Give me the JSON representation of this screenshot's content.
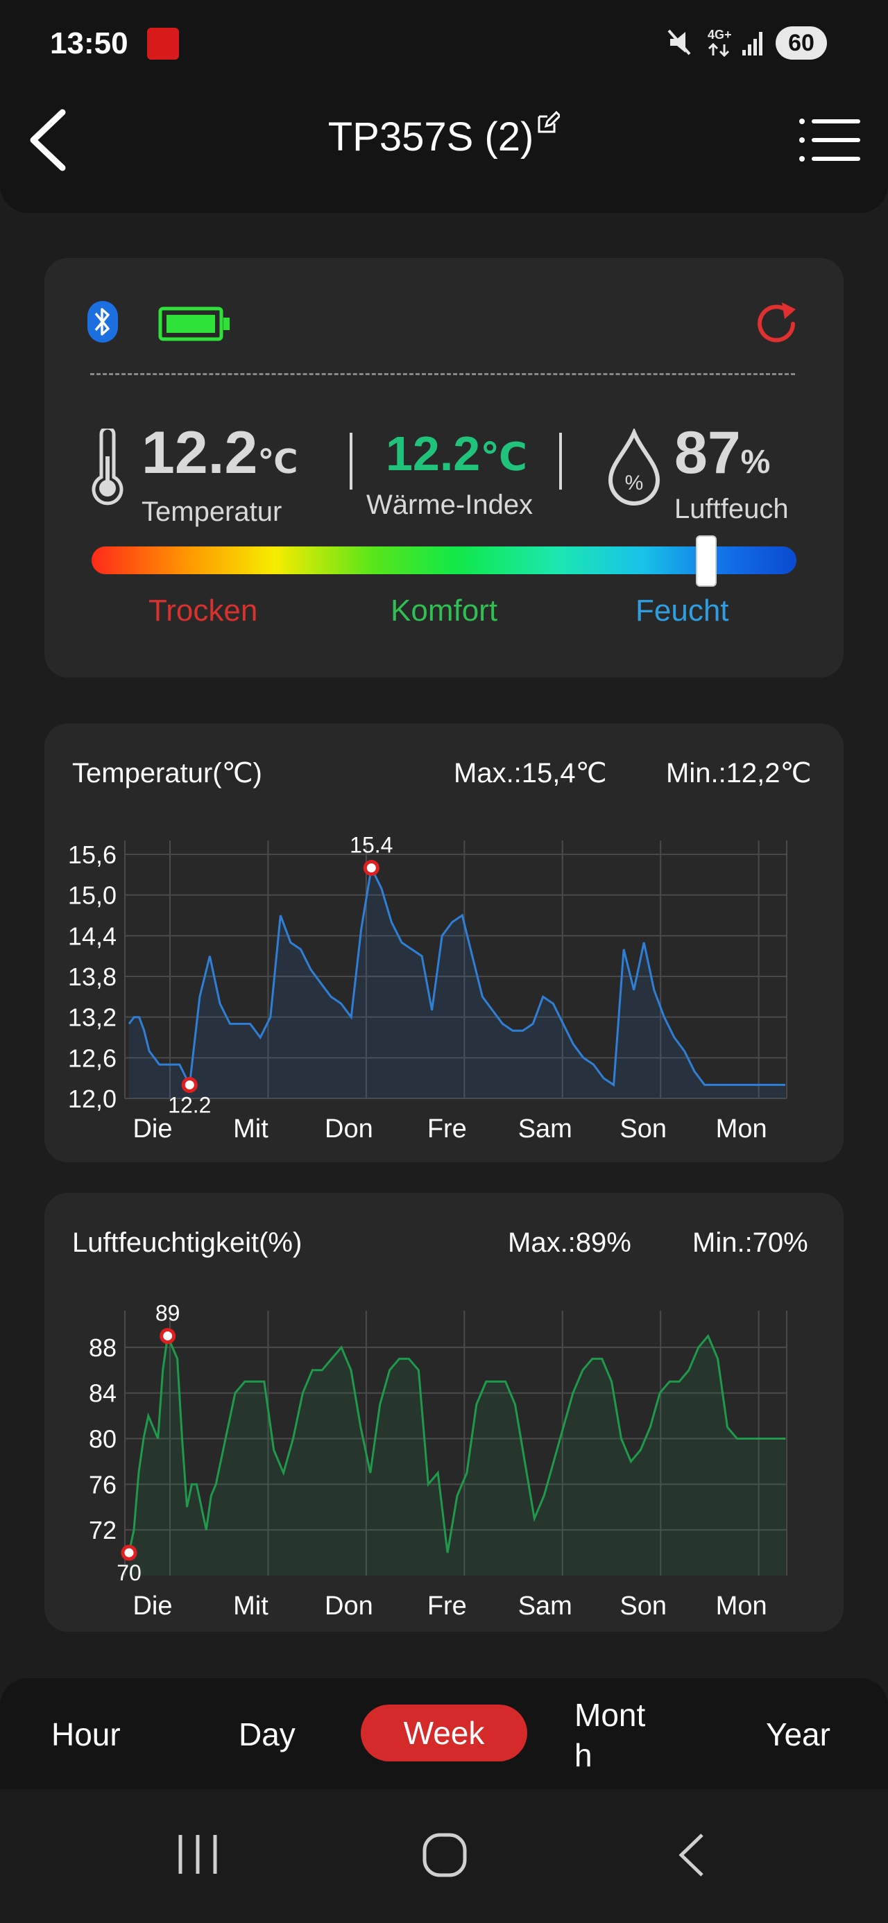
{
  "status_bar": {
    "time": "13:50",
    "battery": "60",
    "network": "4G+"
  },
  "header": {
    "title": "TP357S (2)"
  },
  "readings": {
    "temperature": {
      "value": "12.2",
      "unit": "℃",
      "label": "Temperatur"
    },
    "heat_index": {
      "value": "12.2",
      "unit": "℃",
      "label": "Wärme-Index"
    },
    "humidity": {
      "value": "87",
      "unit": "%",
      "label": "Luftfeuch",
      "bar_level_fraction": 0.87
    }
  },
  "comfort_zones": {
    "dry": "Trocken",
    "comfort": "Komfort",
    "humid": "Feucht"
  },
  "colors": {
    "accent_red": "#d42a2a",
    "temp_line": "#2f7fd6",
    "hum_line": "#1f9a4a",
    "heat_index": "#21c37a",
    "dry": "#d8322e",
    "comfort": "#2fbf53",
    "humid": "#2f9ee0"
  },
  "temp_chart": {
    "title": "Temperatur(℃)",
    "max_text": "Max.:15,4℃",
    "min_text": "Min.:12,2℃",
    "max_label": "15.4",
    "min_label": "12.2"
  },
  "hum_chart": {
    "title": "Luftfeuchtigkeit(%)",
    "max_text": "Max.:89%",
    "min_text": "Min.:70%",
    "max_label": "89",
    "min_label": "70"
  },
  "chart_data": [
    {
      "type": "area",
      "title": "Temperatur(℃)",
      "categories": [
        "Die",
        "Mit",
        "Don",
        "Fre",
        "Sam",
        "Son",
        "Mon"
      ],
      "y_ticks": [
        "15,6",
        "15,0",
        "14,4",
        "13,8",
        "13,2",
        "12,6",
        "12,0"
      ],
      "ylim": [
        12.0,
        15.6
      ],
      "grid": true,
      "max": 15.4,
      "min": 12.2,
      "series": [
        {
          "x": [
            0,
            0.05,
            0.1,
            0.15,
            0.2,
            0.3,
            0.4,
            0.5,
            0.6,
            0.7,
            0.8,
            0.9,
            1.0,
            1.1,
            1.2,
            1.3,
            1.4,
            1.5,
            1.6,
            1.7,
            1.8,
            1.9,
            2.0,
            2.1,
            2.2,
            2.3,
            2.4,
            2.5,
            2.6,
            2.7,
            2.8,
            2.9,
            3.0,
            3.1,
            3.2,
            3.3,
            3.4,
            3.5,
            3.6,
            3.7,
            3.8,
            3.9,
            4.0,
            4.1,
            4.2,
            4.3,
            4.4,
            4.5,
            4.6,
            4.7,
            4.8,
            4.9,
            5.0,
            5.1,
            5.2,
            5.3,
            5.4,
            5.5,
            5.6,
            5.7,
            5.8,
            5.9,
            6.0,
            6.1,
            6.2,
            6.3,
            6.4,
            6.5
          ],
          "values": [
            13.1,
            13.2,
            13.2,
            13.0,
            12.7,
            12.5,
            12.5,
            12.5,
            12.2,
            13.5,
            14.1,
            13.4,
            13.1,
            13.1,
            13.1,
            12.9,
            13.2,
            14.7,
            14.3,
            14.2,
            13.9,
            13.7,
            13.5,
            13.4,
            13.2,
            14.5,
            15.4,
            15.1,
            14.6,
            14.3,
            14.2,
            14.1,
            13.3,
            14.4,
            14.6,
            14.7,
            14.1,
            13.5,
            13.3,
            13.1,
            13.0,
            13.0,
            13.1,
            13.5,
            13.4,
            13.1,
            12.8,
            12.6,
            12.5,
            12.3,
            12.2,
            14.2,
            13.6,
            14.3,
            13.6,
            13.2,
            12.9,
            12.7,
            12.4,
            12.2,
            12.2,
            12.2,
            12.2,
            12.2,
            12.2,
            12.2,
            12.2,
            12.2
          ]
        }
      ]
    },
    {
      "type": "area",
      "title": "Luftfeuchtigkeit(%)",
      "categories": [
        "Die",
        "Mit",
        "Don",
        "Fre",
        "Sam",
        "Son",
        "Mon"
      ],
      "y_ticks": [
        "88",
        "84",
        "80",
        "76",
        "72"
      ],
      "ylim": [
        68,
        90
      ],
      "grid": true,
      "max": 89,
      "min": 70,
      "series": [
        {
          "x": [
            -0.3,
            -0.25,
            -0.2,
            -0.15,
            -0.1,
            0.0,
            0.05,
            0.1,
            0.2,
            0.25,
            0.3,
            0.35,
            0.4,
            0.5,
            0.55,
            0.6,
            0.7,
            0.8,
            0.9,
            1.0,
            1.1,
            1.2,
            1.3,
            1.4,
            1.5,
            1.6,
            1.7,
            1.8,
            1.9,
            2.0,
            2.1,
            2.2,
            2.3,
            2.4,
            2.5,
            2.6,
            2.7,
            2.8,
            2.9,
            3.0,
            3.1,
            3.2,
            3.3,
            3.4,
            3.5,
            3.6,
            3.7,
            3.8,
            3.9,
            4.0,
            4.1,
            4.2,
            4.3,
            4.4,
            4.5,
            4.6,
            4.7,
            4.8,
            4.9,
            5.0,
            5.1,
            5.2,
            5.3,
            5.4,
            5.5,
            5.6,
            5.7,
            5.8,
            5.9,
            6.0,
            6.1,
            6.2,
            6.3,
            6.4,
            6.5
          ],
          "values": [
            70,
            72,
            77,
            80,
            82,
            80,
            86,
            89,
            87,
            80,
            74,
            76,
            76,
            72,
            75,
            76,
            80,
            84,
            85,
            85,
            85,
            79,
            77,
            80,
            84,
            86,
            86,
            87,
            88,
            86,
            81,
            77,
            83,
            86,
            87,
            87,
            86,
            76,
            77,
            70,
            75,
            77,
            83,
            85,
            85,
            85,
            83,
            78,
            73,
            75,
            78,
            81,
            84,
            86,
            87,
            87,
            85,
            80,
            78,
            79,
            81,
            84,
            85,
            85,
            86,
            88,
            89,
            87,
            81,
            80,
            80,
            80,
            80,
            80,
            80
          ]
        }
      ]
    }
  ],
  "time_tabs": {
    "hour": "Hour",
    "day": "Day",
    "week": "Week",
    "month": "Month",
    "year": "Year",
    "selected": "Week"
  }
}
